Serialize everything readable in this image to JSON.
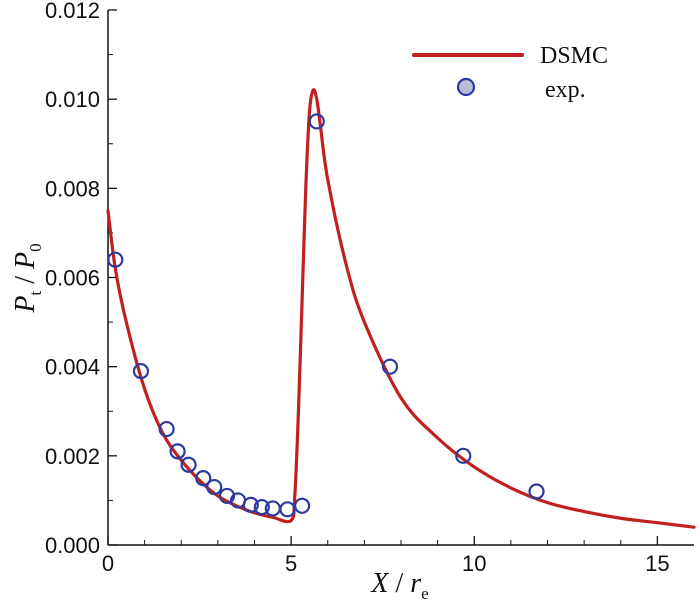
{
  "chart_data": {
    "type": "line",
    "xlabel": {
      "main": "X",
      "sep": " / ",
      "var": "r",
      "sub": "e"
    },
    "ylabel": {
      "main": "P",
      "sub": "t",
      "sep": " / ",
      "var": "P",
      "sub2": "0"
    },
    "xlim": [
      0,
      16
    ],
    "ylim": [
      0,
      0.012
    ],
    "xticks": [
      0,
      5,
      10,
      15
    ],
    "yticks": [
      0,
      0.002,
      0.004,
      0.006,
      0.008,
      0.01,
      0.012
    ],
    "ytick_labels": [
      "0.000",
      "0.002",
      "0.004",
      "0.006",
      "0.008",
      "0.010",
      "0.012"
    ],
    "xtick_labels": [
      "0",
      "5",
      "10",
      "15"
    ],
    "grid": false,
    "legend_position": "top-right",
    "series": [
      {
        "name": "DSMC",
        "kind": "line",
        "color": "#c0201e",
        "x": [
          0,
          0.2,
          0.5,
          1.0,
          1.5,
          2.0,
          2.5,
          3.0,
          3.5,
          4.0,
          4.5,
          5.0,
          5.1,
          5.2,
          5.3,
          5.4,
          5.5,
          5.6,
          5.7,
          5.8,
          6.0,
          6.5,
          7.0,
          8.0,
          9.0,
          10.0,
          11.0,
          12.0,
          13.0,
          14.0,
          15.0,
          16.0
        ],
        "y": [
          0.0075,
          0.0062,
          0.005,
          0.0035,
          0.0025,
          0.0019,
          0.00145,
          0.0011,
          0.00088,
          0.00072,
          0.00062,
          0.00055,
          0.0011,
          0.003,
          0.0055,
          0.008,
          0.0097,
          0.0102,
          0.01,
          0.0094,
          0.0082,
          0.0063,
          0.005,
          0.0033,
          0.0024,
          0.00175,
          0.00128,
          0.00095,
          0.00075,
          0.0006,
          0.0005,
          0.0004
        ]
      },
      {
        "name": "exp.",
        "kind": "scatter",
        "color": "#2b3a9e",
        "x": [
          0.2,
          0.9,
          1.6,
          1.9,
          2.2,
          2.6,
          2.9,
          3.25,
          3.55,
          3.9,
          4.2,
          4.5,
          4.9,
          5.3,
          5.7,
          7.7,
          9.7,
          11.7
        ],
        "y": [
          0.0064,
          0.0039,
          0.0026,
          0.0021,
          0.0018,
          0.0015,
          0.0013,
          0.0011,
          0.001,
          0.0009,
          0.00085,
          0.00082,
          0.0008,
          0.00088,
          0.0095,
          0.004,
          0.002,
          0.0012
        ]
      }
    ]
  }
}
